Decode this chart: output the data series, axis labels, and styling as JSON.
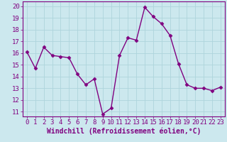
{
  "x": [
    0,
    1,
    2,
    3,
    4,
    5,
    6,
    7,
    8,
    9,
    10,
    11,
    12,
    13,
    14,
    15,
    16,
    17,
    18,
    19,
    20,
    21,
    22,
    23
  ],
  "y": [
    16.1,
    14.7,
    16.5,
    15.8,
    15.7,
    15.6,
    14.2,
    13.3,
    13.8,
    10.8,
    11.3,
    15.8,
    17.3,
    17.1,
    19.9,
    19.1,
    18.5,
    17.5,
    15.1,
    13.3,
    13.0,
    13.0,
    12.8,
    13.1
  ],
  "line_color": "#800080",
  "marker": "D",
  "marker_size": 2.5,
  "bg_color": "#cce8ee",
  "grid_color": "#aed4dc",
  "xlabel": "Windchill (Refroidissement éolien,°C)",
  "ylim": [
    10.6,
    20.4
  ],
  "xlim": [
    -0.5,
    23.5
  ],
  "yticks": [
    11,
    12,
    13,
    14,
    15,
    16,
    17,
    18,
    19,
    20
  ],
  "xticks": [
    0,
    1,
    2,
    3,
    4,
    5,
    6,
    7,
    8,
    9,
    10,
    11,
    12,
    13,
    14,
    15,
    16,
    17,
    18,
    19,
    20,
    21,
    22,
    23
  ],
  "xlabel_fontsize": 7.0,
  "tick_fontsize": 6.5,
  "line_width": 1.0
}
